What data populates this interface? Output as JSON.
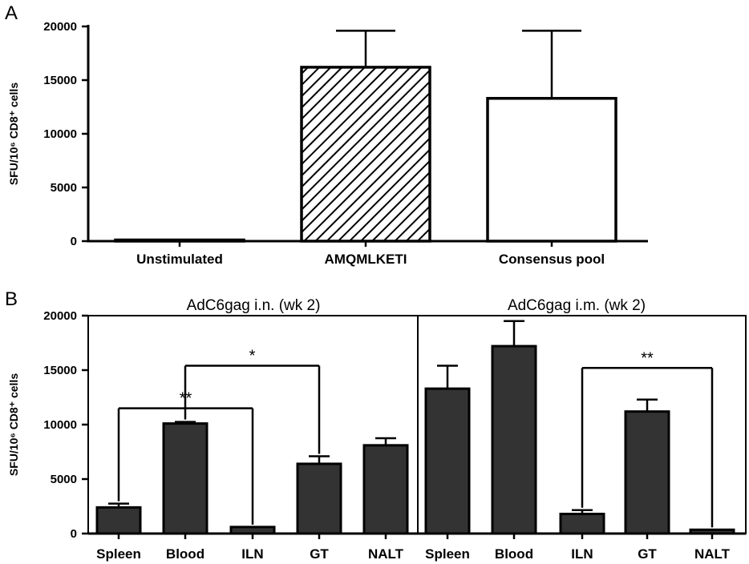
{
  "chart_data": [
    {
      "type": "bar",
      "panel": "A",
      "ylabel": "SFU/10⁶ CD8⁺ cells",
      "ylim": [
        0,
        20000
      ],
      "yticks": [
        "0",
        "5000",
        "10000",
        "15000",
        "20000"
      ],
      "categories": [
        "Unstimulated",
        "AMQMLKETI",
        "Consensus pool"
      ],
      "values": [
        0,
        16200,
        13300
      ],
      "errors": [
        0,
        3400,
        6300
      ],
      "fills": [
        "white",
        "hatched",
        "white"
      ]
    },
    {
      "type": "bar",
      "panel": "B",
      "ylabel": "SFU/10⁶ CD8⁺ cells",
      "ylim": [
        0,
        20000
      ],
      "yticks": [
        "0",
        "5000",
        "10000",
        "15000",
        "20000"
      ],
      "groups": [
        {
          "title": "AdC6gag i.n. (wk 2)",
          "categories": [
            "Spleen",
            "Blood",
            "ILN",
            "GT",
            "NALT"
          ],
          "values": [
            2400,
            10100,
            600,
            6400,
            8100
          ],
          "errors": [
            350,
            150,
            0,
            700,
            650
          ],
          "significance": [
            {
              "from": "Blood",
              "to": "GT",
              "label": "*"
            },
            {
              "from": "Spleen",
              "to": "ILN",
              "label": "**"
            }
          ]
        },
        {
          "title": "AdC6gag i.m. (wk 2)",
          "categories": [
            "Spleen",
            "Blood",
            "ILN",
            "GT",
            "NALT"
          ],
          "values": [
            13300,
            17200,
            1800,
            11200,
            350
          ],
          "errors": [
            2100,
            2300,
            350,
            1100,
            0
          ],
          "significance": [
            {
              "from": "ILN",
              "to": "NALT",
              "label": "**"
            }
          ]
        }
      ],
      "bar_color": "#333333"
    }
  ],
  "panel_labels": [
    "A",
    "B"
  ]
}
